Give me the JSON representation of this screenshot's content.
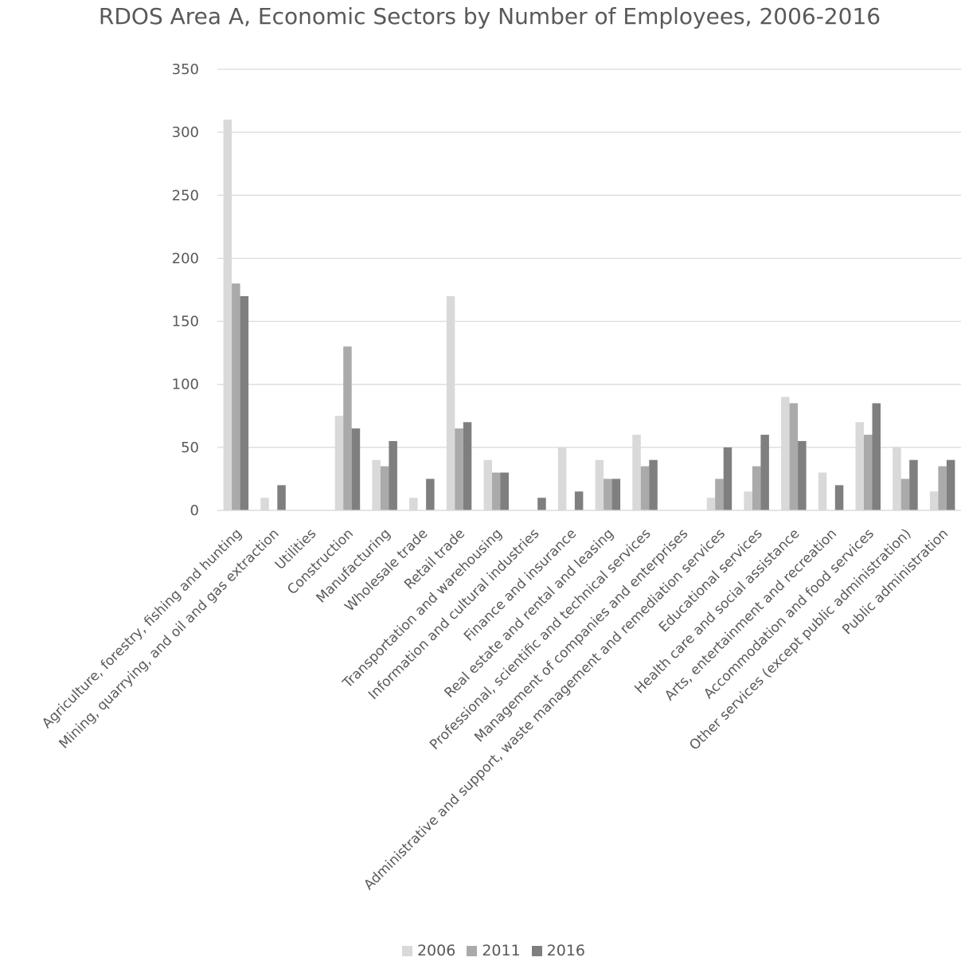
{
  "chart_data": {
    "type": "bar",
    "title": "RDOS Area A, Economic Sectors by Number of Employees, 2006-2016",
    "xlabel": "",
    "ylabel": "",
    "ylim": [
      0,
      350
    ],
    "yticks": [
      0,
      50,
      100,
      150,
      200,
      250,
      300,
      350
    ],
    "grid": true,
    "legend_position": "bottom",
    "categories": [
      "Agriculture, forestry, fishing and hunting",
      "Mining, quarrying, and oil and gas extraction",
      "Utilities",
      "Construction",
      "Manufacturing",
      "Wholesale trade",
      "Retail trade",
      "Transportation and warehousing",
      "Information and cultural industries",
      "Finance and insurance",
      "Real estate and rental and leasing",
      "Professional, scientific and technical services",
      "Management of companies and enterprises",
      "Administrative and support, waste management and remediation services",
      "Educational services",
      "Health care and social assistance",
      "Arts, entertainment and recreation",
      "Accommodation and food services",
      "Other services (except public administration)",
      "Public administration"
    ],
    "series": [
      {
        "name": "2006",
        "color": "#d9d9d9",
        "values": [
          310,
          10,
          0,
          75,
          40,
          10,
          170,
          40,
          0,
          50,
          40,
          60,
          0,
          10,
          15,
          90,
          30,
          70,
          50,
          15
        ]
      },
      {
        "name": "2011",
        "color": "#aaaaaa",
        "values": [
          180,
          0,
          0,
          130,
          35,
          0,
          65,
          30,
          0,
          0,
          25,
          35,
          0,
          25,
          35,
          85,
          0,
          60,
          25,
          35
        ]
      },
      {
        "name": "2016",
        "color": "#7f7f7f",
        "values": [
          170,
          20,
          0,
          65,
          55,
          25,
          70,
          30,
          10,
          15,
          25,
          40,
          0,
          50,
          60,
          55,
          20,
          85,
          40,
          40
        ]
      }
    ]
  }
}
